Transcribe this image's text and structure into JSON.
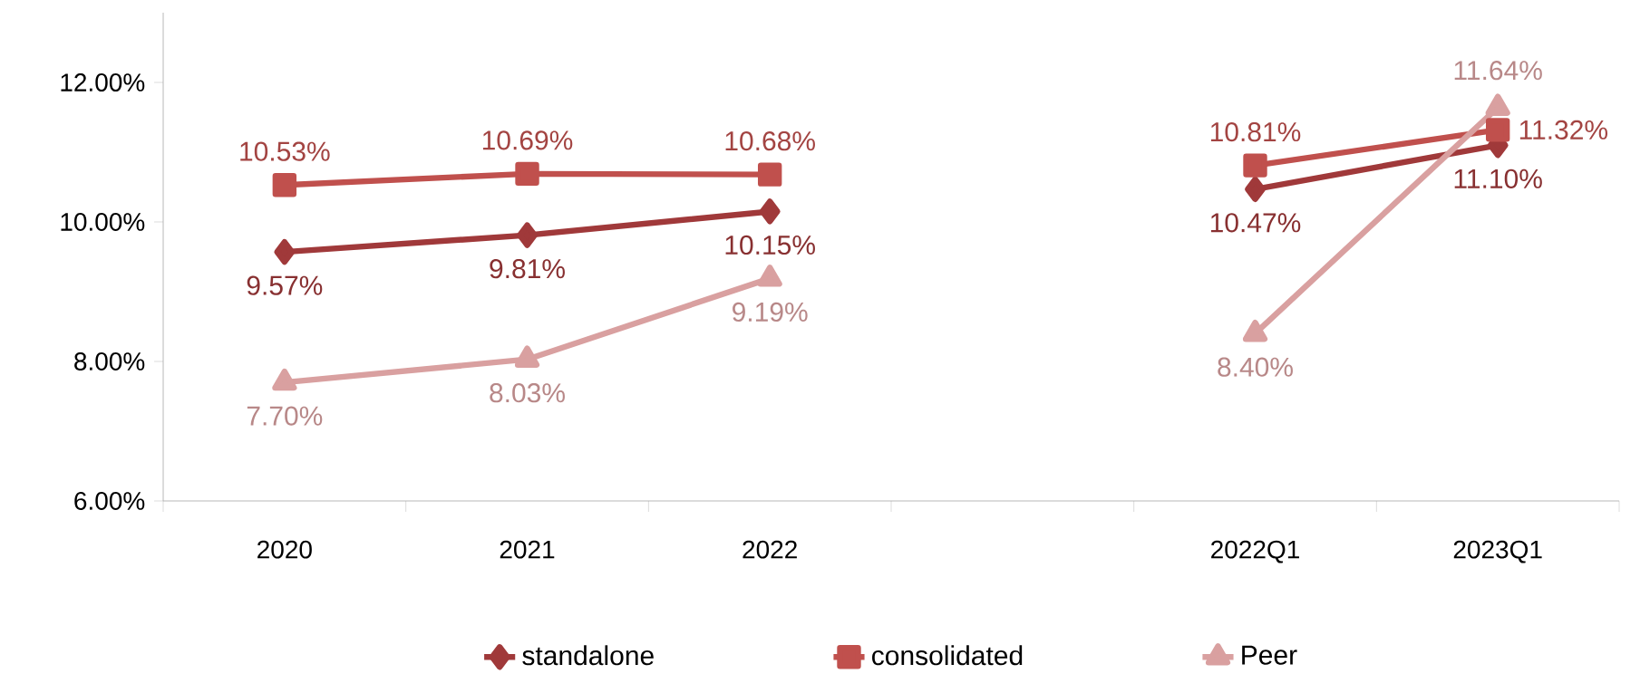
{
  "chart_data": {
    "type": "line",
    "categories": [
      "2020",
      "2021",
      "2022",
      null,
      "2022Q1",
      "2023Q1"
    ],
    "ylim": [
      6,
      13
    ],
    "yticks": [
      {
        "value": 6,
        "label": "6.00%"
      },
      {
        "value": 8,
        "label": "8.00%"
      },
      {
        "value": 10,
        "label": "10.00%"
      },
      {
        "value": 12,
        "label": "12.00%"
      }
    ],
    "legend": "bottom",
    "grid": false,
    "line_style": "solid",
    "series": [
      {
        "name": "standalone",
        "color": "#a0393a",
        "marker": "diamond",
        "values": [
          9.57,
          9.81,
          10.15,
          null,
          10.47,
          11.1
        ],
        "value_labels": [
          "9.57%",
          "9.81%",
          "10.15%",
          null,
          "10.47%",
          "11.10%"
        ]
      },
      {
        "name": "consolidated",
        "color": "#c0504d",
        "marker": "square",
        "values": [
          10.53,
          10.69,
          10.68,
          null,
          10.81,
          11.32
        ],
        "value_labels": [
          "10.53%",
          "10.69%",
          "10.68%",
          null,
          "10.81%",
          "11.32%"
        ]
      },
      {
        "name": "Peer",
        "color": "#d9a0a0",
        "marker": "triangle",
        "values": [
          7.7,
          8.03,
          9.19,
          null,
          8.4,
          11.64
        ],
        "value_labels": [
          "7.70%",
          "8.03%",
          "9.19%",
          null,
          "8.40%",
          "11.64%"
        ]
      }
    ]
  }
}
